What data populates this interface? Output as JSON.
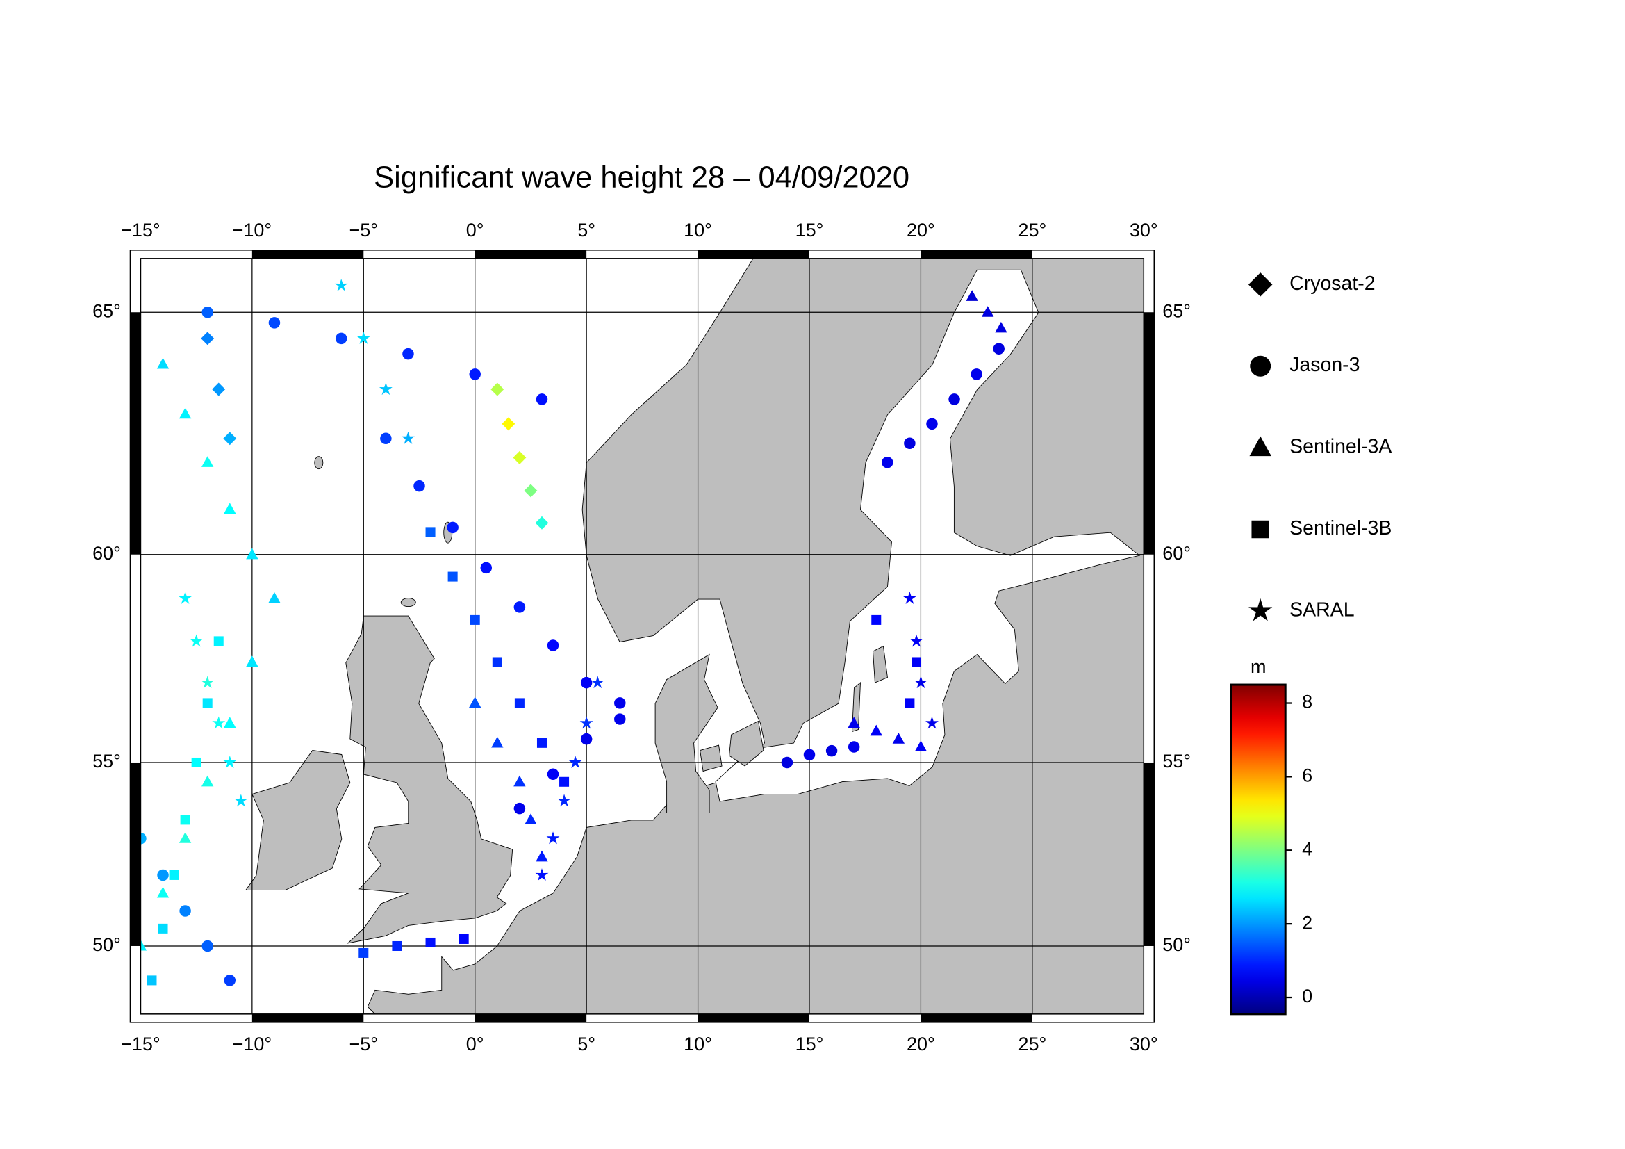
{
  "chart_data": {
    "type": "map",
    "title": "Significant wave height 28 – 04/09/2020",
    "projection": "mercator",
    "xlim": [
      -15,
      30
    ],
    "ylim": [
      48,
      66
    ],
    "xticks": [
      {
        "value": -15,
        "label": "−15°"
      },
      {
        "value": -10,
        "label": "−10°"
      },
      {
        "value": -5,
        "label": "−5°"
      },
      {
        "value": 0,
        "label": "0°"
      },
      {
        "value": 5,
        "label": "5°"
      },
      {
        "value": 10,
        "label": "10°"
      },
      {
        "value": 15,
        "label": "15°"
      },
      {
        "value": 20,
        "label": "20°"
      },
      {
        "value": 25,
        "label": "25°"
      },
      {
        "value": 30,
        "label": "30°"
      }
    ],
    "yticks": [
      {
        "value": 50,
        "label": "50°"
      },
      {
        "value": 55,
        "label": "55°"
      },
      {
        "value": 60,
        "label": "60°"
      },
      {
        "value": 65,
        "label": "65°"
      }
    ],
    "grid": true,
    "colorbar": {
      "label": "m",
      "clim": [
        -0.45,
        8.5
      ],
      "ticks": [
        0,
        2,
        4,
        6,
        8
      ],
      "colormap": "jet"
    },
    "series": [
      {
        "name": "Cryosat-2",
        "marker": "diamond",
        "lon": [
          1,
          1.5,
          2,
          2.5,
          3,
          -12,
          -11.5,
          -11
        ],
        "lat": [
          63.5,
          62.8,
          62.1,
          61.4,
          60.7,
          64.5,
          63.5,
          62.5
        ],
        "values": [
          4.5,
          5.2,
          4.8,
          4.0,
          3.2,
          1.8,
          2.0,
          2.2
        ]
      },
      {
        "name": "Jason-3",
        "marker": "circle",
        "lon": [
          -4,
          -2.5,
          -1,
          0.5,
          2,
          3.5,
          5,
          6.5,
          2,
          3.5,
          5,
          6.5,
          18.5,
          19.5,
          20.5,
          21.5,
          22.5,
          23.5,
          -15,
          -14,
          -13,
          -12,
          -11,
          -12,
          -9,
          -6,
          -3,
          0,
          3,
          14,
          15,
          16,
          17
        ],
        "lat": [
          62.5,
          61.5,
          60.6,
          59.7,
          58.8,
          57.9,
          57,
          56.1,
          53.8,
          54.7,
          55.6,
          56.5,
          62,
          62.4,
          62.8,
          63.3,
          63.8,
          64.3,
          53,
          52,
          51,
          50,
          49,
          65,
          64.8,
          64.5,
          64.2,
          63.8,
          63.3,
          55,
          55.2,
          55.3,
          55.4
        ],
        "values": [
          1.2,
          1.0,
          0.9,
          0.8,
          0.9,
          0.7,
          0.6,
          0.5,
          0.5,
          0.6,
          0.5,
          0.5,
          0.5,
          0.4,
          0.5,
          0.4,
          0.5,
          0.4,
          2.2,
          2.0,
          1.8,
          1.5,
          1.2,
          1.5,
          1.3,
          1.2,
          1.0,
          0.9,
          0.8,
          0.4,
          0.5,
          0.4,
          0.5
        ]
      },
      {
        "name": "Sentinel-3A",
        "marker": "triangle",
        "lon": [
          -14,
          -13,
          -12,
          -11,
          -10,
          -9,
          0,
          1,
          2,
          2.5,
          3,
          22.3,
          23,
          23.6,
          -15,
          -14,
          -13,
          -12,
          -11,
          -10,
          17,
          18,
          19,
          20
        ],
        "lat": [
          64,
          63,
          62,
          61,
          60,
          59,
          56.5,
          55.5,
          54.5,
          53.5,
          52.5,
          65.3,
          65,
          64.7,
          50,
          51.5,
          53,
          54.5,
          56,
          57.5,
          56,
          55.8,
          55.6,
          55.4
        ],
        "values": [
          2.6,
          2.8,
          3.0,
          2.9,
          2.7,
          2.5,
          1.4,
          1.2,
          1.1,
          1.0,
          0.9,
          0.3,
          0.4,
          0.4,
          2.8,
          3.0,
          3.2,
          3.1,
          2.9,
          2.7,
          0.5,
          0.6,
          0.5,
          0.6
        ]
      },
      {
        "name": "Sentinel-3B",
        "marker": "square",
        "lon": [
          -2,
          -1,
          0,
          1,
          2,
          3,
          4,
          -5,
          -3.5,
          -2,
          -0.5,
          -14.5,
          -14,
          -13.5,
          -13,
          -12.5,
          -12,
          -11.5,
          18,
          19.8,
          19.5
        ],
        "lat": [
          60.5,
          59.5,
          58.5,
          57.5,
          56.5,
          55.5,
          54.5,
          49.8,
          50.0,
          50.1,
          50.2,
          49,
          50.5,
          52,
          53.5,
          55,
          56.5,
          58,
          58.5,
          57.5,
          56.5
        ],
        "values": [
          1.5,
          1.4,
          1.3,
          1.1,
          1.0,
          0.9,
          0.8,
          1.2,
          1.0,
          0.8,
          0.7,
          2.4,
          2.6,
          2.8,
          3.0,
          2.9,
          2.7,
          2.8,
          0.7,
          0.6,
          0.6
        ]
      },
      {
        "name": "SARAL",
        "marker": "star",
        "lon": [
          3,
          3.5,
          4,
          4.5,
          5,
          5.5,
          -13,
          -12.5,
          -12,
          -11.5,
          -11,
          -10.5,
          19.5,
          19.8,
          20,
          20.5,
          -6,
          -5,
          -4,
          -3
        ],
        "lat": [
          52,
          53,
          54,
          55,
          56,
          57,
          59,
          58,
          57,
          56,
          55,
          54,
          59,
          58,
          57,
          56,
          65.5,
          64.5,
          63.5,
          62.5
        ],
        "values": [
          0.8,
          0.9,
          1.0,
          1.0,
          1.1,
          1.1,
          2.8,
          3.0,
          3.2,
          3.0,
          2.8,
          2.6,
          0.6,
          0.6,
          0.5,
          0.5,
          2.5,
          2.6,
          2.4,
          2.2
        ]
      }
    ]
  }
}
